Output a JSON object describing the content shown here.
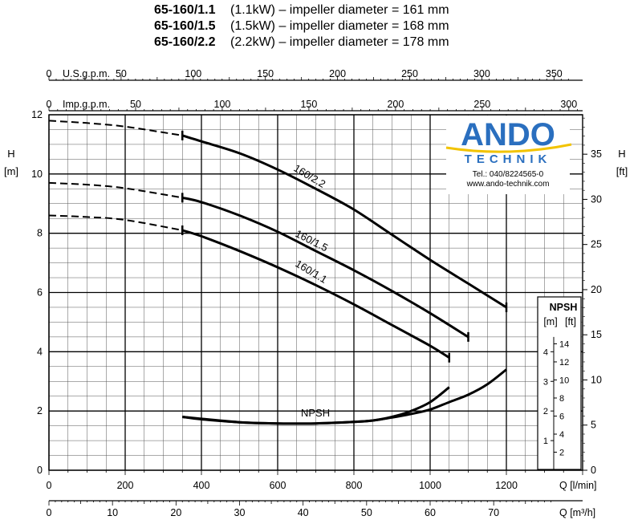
{
  "header": {
    "lines": [
      {
        "model": "65-160/1.1",
        "rest": "(1.1kW) – impeller diameter = 161 mm"
      },
      {
        "model": "65-160/1.5",
        "rest": "(1.5kW) – impeller diameter = 168 mm"
      },
      {
        "model": "65-160/2.2",
        "rest": "(2.2kW) – impeller diameter = 178 mm"
      }
    ]
  },
  "logo": {
    "name": "ANDO",
    "sub": "TECHNIK",
    "tel": "Tel.: 040/8224565-0",
    "web": "www.ando-technik.com",
    "color_blue": "#2a6fbf",
    "color_yellow": "#f2c300"
  },
  "chart_data": {
    "type": "line",
    "x_axis": {
      "label": "Q [l/min]",
      "range": [
        0,
        1200
      ],
      "ticks": [
        0,
        200,
        400,
        600,
        800,
        1000,
        1200
      ]
    },
    "y_axis_left": {
      "label_top": "H",
      "label_unit": "[m]",
      "range": [
        0,
        12
      ],
      "ticks": [
        0,
        2,
        4,
        6,
        8,
        10,
        12
      ]
    },
    "y_axis_right": {
      "label_top": "H",
      "label_unit": "[ft]",
      "ticks": [
        0,
        5,
        10,
        15,
        20,
        25,
        30,
        35
      ]
    },
    "top_axis_1": {
      "label": "U.S.g.p.m.",
      "ticks": [
        0,
        50,
        100,
        150,
        200,
        250,
        300,
        350
      ]
    },
    "top_axis_2": {
      "label": "Imp.g.p.m.",
      "ticks": [
        0,
        50,
        100,
        150,
        200,
        250,
        300
      ]
    },
    "bottom_axis_2": {
      "label": "Q [m³/h]",
      "ticks": [
        0,
        10,
        20,
        30,
        40,
        50,
        60,
        70
      ]
    },
    "npsh_axis": {
      "label": "NPSH",
      "unit_m": "[m]",
      "unit_ft": "[ft]",
      "ticks_m": [
        1,
        2,
        3,
        4
      ],
      "ticks_ft": [
        2,
        4,
        6,
        8,
        10,
        12,
        14
      ]
    },
    "series": [
      {
        "name": "160/2.2",
        "dashed": {
          "x": [
            0,
            100,
            200,
            350
          ],
          "y": [
            11.8,
            11.72,
            11.6,
            11.3
          ]
        },
        "solid": {
          "x": [
            350,
            400,
            500,
            600,
            700,
            800,
            900,
            1000,
            1100,
            1200
          ],
          "y": [
            11.3,
            11.1,
            10.7,
            10.15,
            9.5,
            8.8,
            7.95,
            7.1,
            6.3,
            5.5
          ]
        }
      },
      {
        "name": "160/1.5",
        "dashed": {
          "x": [
            0,
            100,
            200,
            350
          ],
          "y": [
            9.7,
            9.64,
            9.52,
            9.2
          ]
        },
        "solid": {
          "x": [
            350,
            400,
            500,
            600,
            700,
            800,
            900,
            1000,
            1100
          ],
          "y": [
            9.2,
            9.05,
            8.6,
            8.05,
            7.4,
            6.75,
            6.05,
            5.3,
            4.5
          ]
        }
      },
      {
        "name": "160/1.1",
        "dashed": {
          "x": [
            0,
            100,
            200,
            350
          ],
          "y": [
            8.6,
            8.55,
            8.45,
            8.1
          ]
        },
        "solid": {
          "x": [
            350,
            400,
            500,
            600,
            700,
            800,
            900,
            1000,
            1050
          ],
          "y": [
            8.1,
            7.9,
            7.4,
            6.85,
            6.25,
            5.6,
            4.9,
            4.2,
            3.8
          ]
        }
      }
    ],
    "npsh_curves": [
      {
        "x": [
          350,
          400,
          500,
          600,
          700,
          800,
          850,
          900,
          950,
          1000,
          1050
        ],
        "y": [
          1.8,
          1.72,
          1.62,
          1.58,
          1.58,
          1.63,
          1.68,
          1.8,
          2.0,
          2.3,
          2.8
        ]
      },
      {
        "x": [
          350,
          500,
          600,
          700,
          800,
          850,
          900,
          950,
          1000,
          1050,
          1100,
          1150,
          1200
        ],
        "y": [
          1.8,
          1.62,
          1.58,
          1.58,
          1.63,
          1.68,
          1.78,
          1.9,
          2.05,
          2.3,
          2.55,
          2.9,
          3.4
        ]
      }
    ],
    "npsh_label": "NPSH"
  }
}
